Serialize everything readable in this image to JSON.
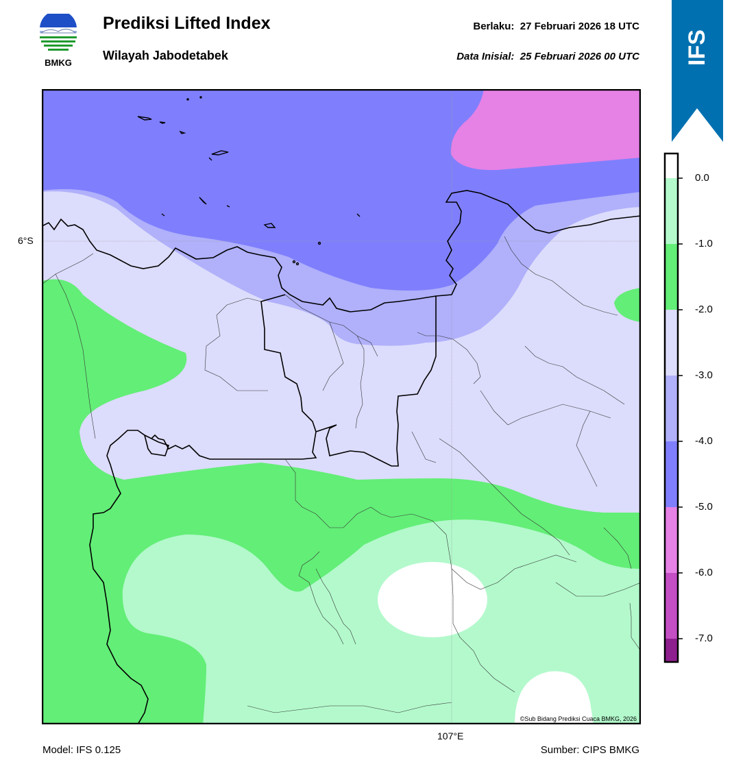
{
  "header": {
    "logo_text": "BMKG",
    "title": "Prediksi Lifted Index",
    "subtitle": "Wilayah Jabodetabek",
    "valid_label": "Berlaku:",
    "valid_time": "27 Februari 2026 18 UTC",
    "init_label": "Data Inisial:",
    "init_time": "25 Februari 2026 00 UTC",
    "ribbon": "IFS"
  },
  "map": {
    "lat_label": "6°S",
    "lon_label": "107°E",
    "credit": "©Sub Bidang Prediksi Cuaca BMKG, 2026"
  },
  "footer": {
    "model": "Model: IFS 0.125",
    "source": "Sumber: CIPS BMKG"
  },
  "colorbar": {
    "ticks": [
      "0.0",
      "-1.0",
      "-2.0",
      "-3.0",
      "-4.0",
      "-5.0",
      "-6.0",
      "-7.0"
    ],
    "colors": {
      "above_0": "#ffffff",
      "0_to_-1": "#b3f9cc",
      "-1_to_-2": "#63ee77",
      "-2_to_-3": "#dcdcfc",
      "-3_to_-4": "#b0b0fb",
      "-4_to_-5": "#7f7ffd",
      "-5_to_-6": "#e681e6",
      "-6_to_-7": "#c44ec4",
      "below_-7": "#8e1f8e"
    }
  },
  "colors": {
    "ribbon": "#0070b0",
    "frame": "#000000"
  }
}
